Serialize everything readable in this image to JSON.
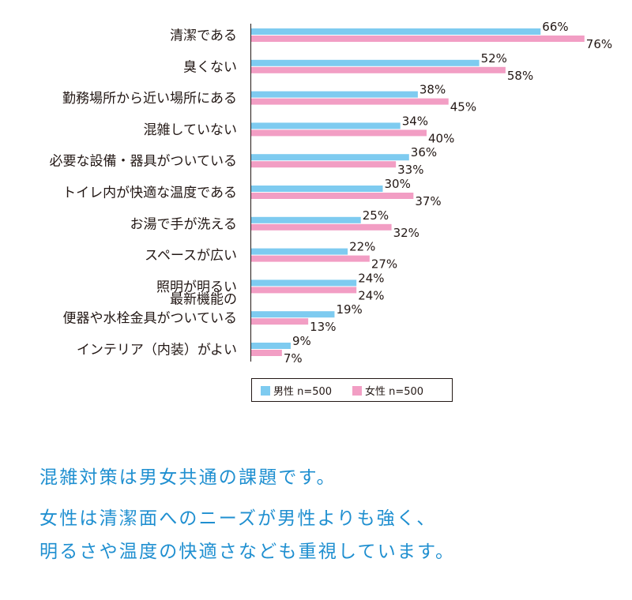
{
  "chart_data": {
    "type": "bar",
    "orientation": "horizontal",
    "categories": [
      [
        "清潔である"
      ],
      [
        "臭くない"
      ],
      [
        "勤務場所から近い場所にある"
      ],
      [
        "混雑していない"
      ],
      [
        "必要な設備・器具がついている"
      ],
      [
        "トイレ内が快適な温度である"
      ],
      [
        "お湯で手が洗える"
      ],
      [
        "スペースが広い"
      ],
      [
        "照明が明るい"
      ],
      [
        "最新機能の",
        "便器や水栓金具がついている"
      ],
      [
        "インテリア（内装）がよい"
      ]
    ],
    "series": [
      {
        "name": "男性 n=500",
        "color": "#7ecbf0",
        "values": [
          66,
          52,
          38,
          34,
          36,
          30,
          25,
          22,
          24,
          19,
          9
        ]
      },
      {
        "name": "女性 n=500",
        "color": "#f29ec4",
        "values": [
          76,
          58,
          45,
          40,
          33,
          37,
          32,
          27,
          24,
          13,
          7
        ]
      }
    ],
    "value_suffix": "%",
    "xlim": [
      0,
      100
    ],
    "legend_position": "bottom"
  },
  "caption": {
    "lines": [
      "混雑対策は男女共通の課題です。",
      "女性は清潔面へのニーズが男性よりも強く、",
      "明るさや温度の快適さなども重視しています。"
    ]
  }
}
